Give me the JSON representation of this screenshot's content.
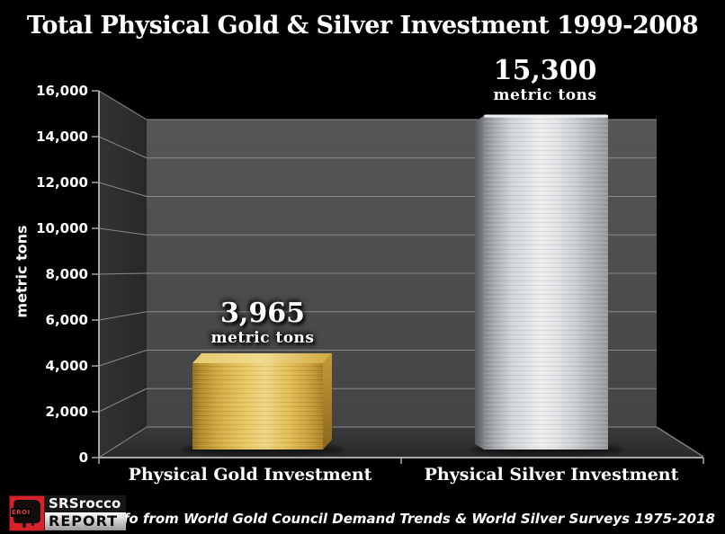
{
  "colors": {
    "background": "#000000",
    "back_wall": "#4b4b4b",
    "side_wall": "#2e2e2e",
    "floor": "#313131",
    "gridline": "#8a8a8a",
    "gold": "#d8b04a",
    "silver": "#cdd0d3",
    "text": "#ffffff"
  },
  "logo": {
    "icon_text": "EROI",
    "name": "SRSrocco",
    "suffix": "REPORT"
  },
  "chart_data": {
    "type": "bar",
    "projection": "3d-column",
    "title": "Total Physical Gold & Silver Investment 1999-2008",
    "categories": [
      "Physical Gold Investment",
      "Physical Silver Investment"
    ],
    "values": [
      3965,
      15300
    ],
    "value_labels": [
      {
        "value": "3,965",
        "unit": "metric tons"
      },
      {
        "value": "15,300",
        "unit": "metric tons"
      }
    ],
    "series_colors": [
      "gold",
      "silver"
    ],
    "ylabel": "metric tons",
    "ylim": [
      0,
      16000
    ],
    "ytick_interval": 2000,
    "yticks": [
      "0",
      "2,000",
      "4,000",
      "6,000",
      "8,000",
      "10,000",
      "12,000",
      "14,000",
      "16,000"
    ],
    "grid": true,
    "legend": false,
    "source_note": "info from World Gold Council Demand Trends & World Silver Surveys 1975-2018"
  }
}
